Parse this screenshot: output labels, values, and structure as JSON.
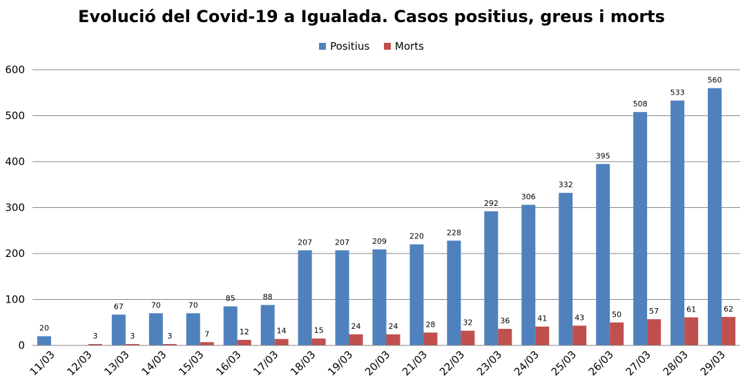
{
  "chart_data": {
    "type": "bar",
    "title": "Evolució del Covid-19 a Igualada. Casos positius, greus i morts",
    "xlabel": "",
    "ylabel": "",
    "ylim": [
      0,
      600
    ],
    "yticks": [
      0,
      100,
      200,
      300,
      400,
      500,
      600
    ],
    "grid": true,
    "legend_position": "top",
    "categories": [
      "11/03",
      "12/03",
      "13/03",
      "14/03",
      "15/03",
      "16/03",
      "17/03",
      "18/03",
      "19/03",
      "20/03",
      "21/03",
      "22/03",
      "23/03",
      "24/03",
      "25/03",
      "26/03",
      "27/03",
      "28/03",
      "29/03"
    ],
    "series": [
      {
        "name": "Positius",
        "color": "#4F81BD",
        "values": [
          20,
          null,
          67,
          70,
          70,
          85,
          88,
          207,
          207,
          209,
          220,
          228,
          292,
          306,
          332,
          395,
          508,
          533,
          560
        ]
      },
      {
        "name": "Morts",
        "color": "#C0504D",
        "values": [
          null,
          3,
          3,
          3,
          7,
          12,
          14,
          15,
          24,
          24,
          28,
          32,
          36,
          41,
          43,
          50,
          57,
          61,
          62
        ]
      }
    ]
  }
}
